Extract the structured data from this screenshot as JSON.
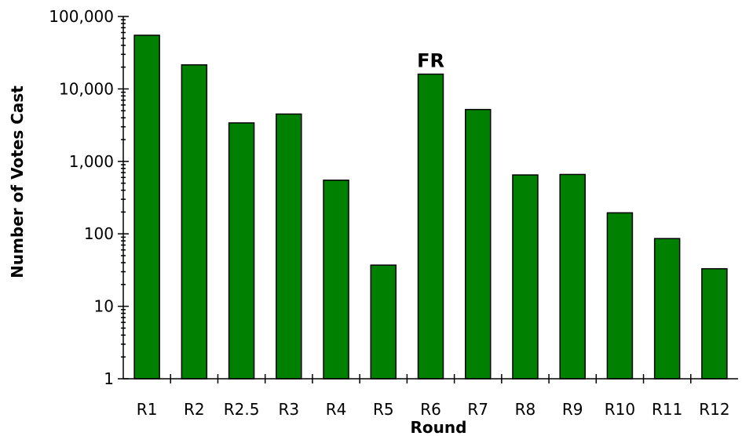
{
  "chart_data": {
    "type": "bar",
    "xlabel": "Round",
    "ylabel": "Number of Votes Cast",
    "yscale": "log",
    "ylim": [
      1,
      100000
    ],
    "yticks": [
      "1",
      "10",
      "100",
      "1,000",
      "10,000",
      "100,000"
    ],
    "categories": [
      "R1",
      "R2",
      "R2.5",
      "R3",
      "R4",
      "R5",
      "R6",
      "R7",
      "R8",
      "R9",
      "R10",
      "R11",
      "R12"
    ],
    "values": [
      55000,
      21500,
      3400,
      4500,
      550,
      37,
      16000,
      5200,
      650,
      660,
      195,
      86,
      33
    ],
    "bar_color": "#008000",
    "annotations": [
      {
        "text": "FR",
        "category": "R6"
      }
    ],
    "grid": false,
    "legend": "none"
  }
}
